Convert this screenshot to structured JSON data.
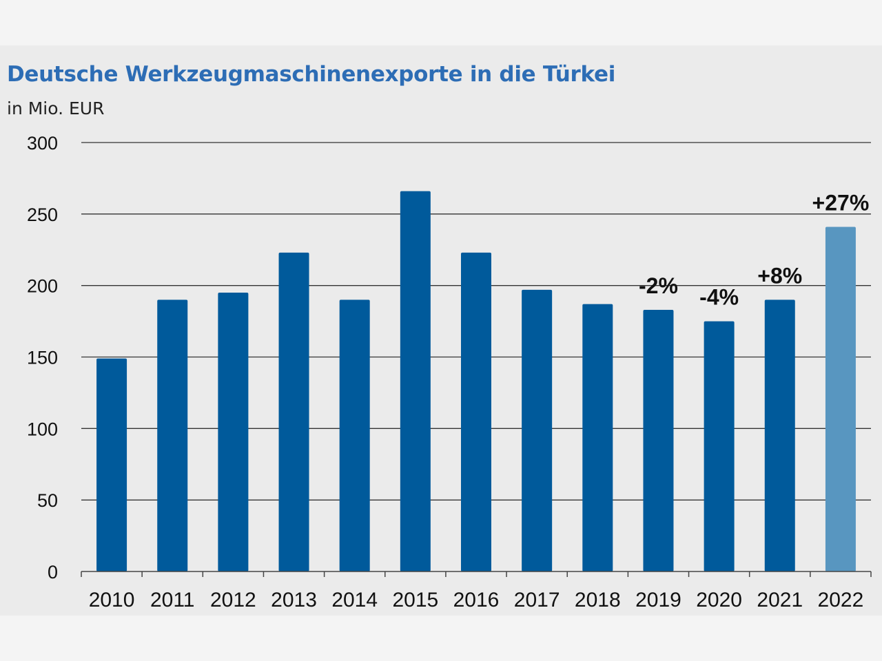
{
  "chart_data": {
    "type": "bar",
    "title": "Deutsche Werkzeugmaschinenexporte in die Türkei",
    "subtitle": "in Mio. EUR",
    "categories": [
      "2010",
      "2011",
      "2012",
      "2013",
      "2014",
      "2015",
      "2016",
      "2017",
      "2018",
      "2019",
      "2020",
      "2021",
      "2022"
    ],
    "values": [
      149,
      190,
      195,
      223,
      190,
      266,
      223,
      197,
      187,
      183,
      175,
      190,
      241
    ],
    "annotations": [
      "",
      "",
      "",
      "",
      "",
      "",
      "",
      "",
      "",
      "-2%",
      "-4%",
      "+8%",
      "+27%"
    ],
    "yticks": [
      "0",
      "50",
      "100",
      "150",
      "200",
      "250",
      "300"
    ],
    "ylim": [
      0,
      300
    ],
    "grid": true,
    "colors": {
      "bar": "#005a9b",
      "highlight": "#5896c0"
    },
    "highlight_categories": [
      "2022"
    ]
  }
}
